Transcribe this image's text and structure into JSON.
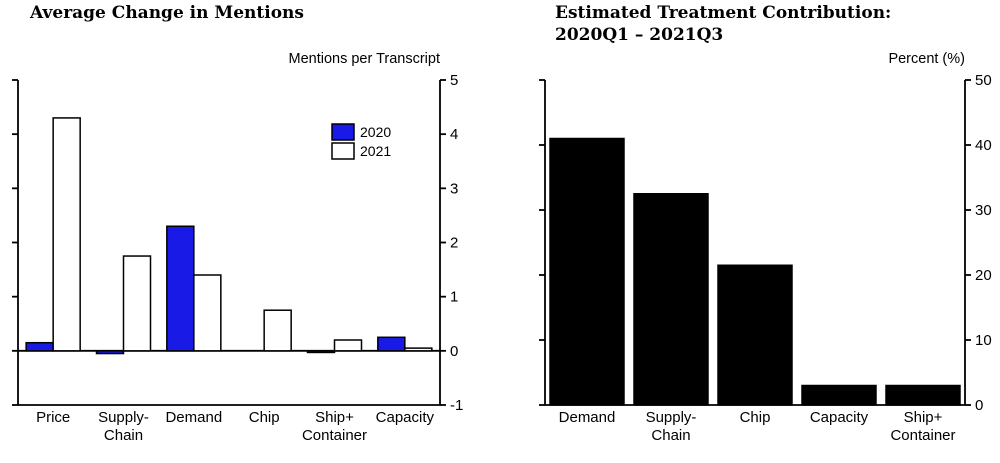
{
  "page": {
    "background": "#ffffff"
  },
  "chart_data": [
    {
      "id": "average-change-in-mentions",
      "type": "bar",
      "title": "Average Change in Mentions",
      "axis_unit_label": "Mentions per Transcript",
      "categories": [
        "Price",
        "Supply-\nChain",
        "Demand",
        "Chip",
        "Ship+\nContainer",
        "Capacity"
      ],
      "series": [
        {
          "name": "2020",
          "color": "#1a1ae6",
          "values": [
            0.15,
            -0.05,
            2.3,
            0,
            -0.03,
            0.25
          ]
        },
        {
          "name": "2021",
          "color": "#ffffff",
          "values": [
            4.3,
            1.75,
            1.4,
            0.75,
            0.2,
            0.05
          ]
        }
      ],
      "ylim": [
        -1,
        5
      ],
      "yticks": [
        -1,
        0,
        1,
        2,
        3,
        4,
        5
      ],
      "zero_line": true,
      "bar_outline_color": "#000000",
      "legend": {
        "entries": [
          "2020",
          "2021"
        ],
        "position": "upper-right-inside"
      }
    },
    {
      "id": "estimated-treatment-contribution",
      "type": "bar",
      "title": "Estimated Treatment Contribution:\n2020Q1 – 2021Q3",
      "axis_unit_label": "Percent (%)",
      "categories": [
        "Demand",
        "Supply-\nChain",
        "Chip",
        "Capacity",
        "Ship+\nContainer"
      ],
      "series": [
        {
          "color": "#000000",
          "values": [
            41,
            32.5,
            21.5,
            3,
            3
          ]
        }
      ],
      "ylim": [
        0,
        50
      ],
      "yticks": [
        0,
        10,
        20,
        30,
        40,
        50
      ],
      "zero_line": false,
      "bar_outline_color": "#000000",
      "legend": null
    }
  ]
}
